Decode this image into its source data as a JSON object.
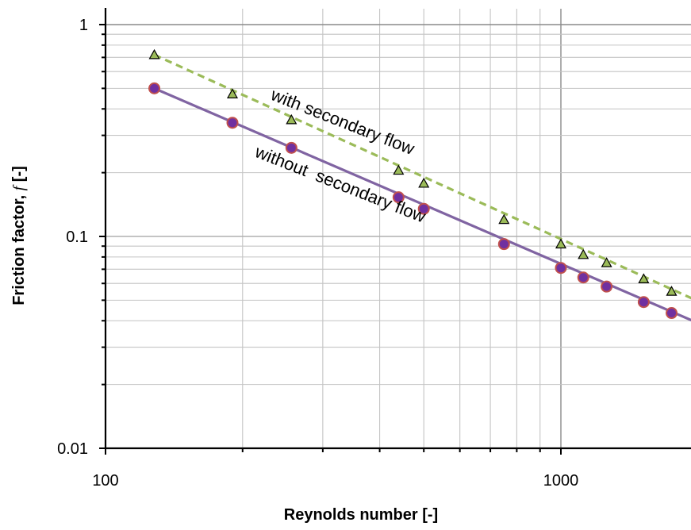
{
  "chart_data": {
    "type": "scatter",
    "title": "",
    "xlabel": "Reynolds number [-]",
    "ylabel_main": "Friction factor, ",
    "ylabel_symbol": "f",
    "ylabel_unit": " [-]",
    "x_scale": "log",
    "y_scale": "log",
    "xlim": [
      100,
      2000
    ],
    "ylim": [
      0.01,
      1
    ],
    "x_tick_labels": [
      "100",
      "1000"
    ],
    "y_tick_labels": [
      "0.01",
      "0.1",
      "1"
    ],
    "grid": true,
    "annotations": [
      "with secondary flow",
      "without  secondary flow"
    ],
    "series": [
      {
        "label": "with secondary flow",
        "marker": "triangle",
        "marker_color": "#9bbb59",
        "line": "dashed",
        "line_color": "#9bbb59",
        "x": [
          128,
          190,
          256,
          440,
          500,
          750,
          1000,
          1120,
          1260,
          1520,
          1750
        ],
        "y": [
          0.72,
          0.47,
          0.355,
          0.205,
          0.178,
          0.12,
          0.092,
          0.082,
          0.075,
          0.063,
          0.055
        ],
        "fit": {
          "x": [
            128,
            2000
          ],
          "y": [
            0.72,
            0.0495
          ]
        }
      },
      {
        "label": "without secondary flow",
        "marker": "circle",
        "marker_color": "#7030a0",
        "marker_edge": "#c0504d",
        "line": "solid",
        "line_color": "#8064a2",
        "x": [
          128,
          190,
          256,
          440,
          500,
          750,
          1000,
          1120,
          1260,
          1520,
          1750
        ],
        "y": [
          0.5,
          0.344,
          0.262,
          0.153,
          0.135,
          0.092,
          0.071,
          0.064,
          0.058,
          0.049,
          0.0435
        ],
        "fit": {
          "x": [
            128,
            2000
          ],
          "y": [
            0.5,
            0.039
          ]
        }
      }
    ]
  }
}
